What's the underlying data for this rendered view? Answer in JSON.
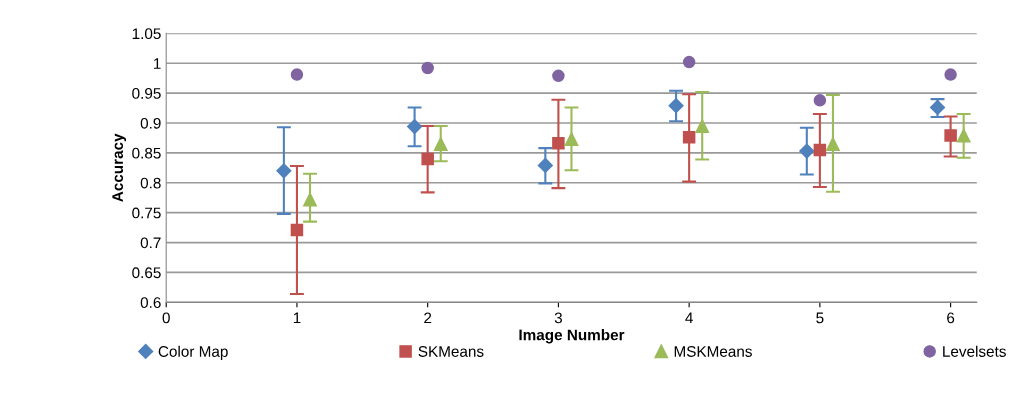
{
  "chart_data": {
    "type": "scatter",
    "xlabel": "Image Number",
    "ylabel": "Accuracy",
    "xlim": [
      0,
      6.2
    ],
    "xticks": [
      0,
      1,
      2,
      3,
      4,
      5,
      6
    ],
    "ylim": [
      0.6,
      1.05
    ],
    "yticks": [
      0.6,
      0.65,
      0.7,
      0.75,
      0.8,
      0.85,
      0.9,
      0.95,
      1,
      1.05
    ],
    "grid": "y",
    "legend": "bottom",
    "series": [
      {
        "name": "Color Map",
        "color": "#4f81bd",
        "marker": "diamond",
        "x": [
          0.9,
          1.9,
          2.9,
          3.9,
          4.9,
          5.9
        ],
        "values": [
          0.82,
          0.894,
          0.829,
          0.929,
          0.853,
          0.926
        ],
        "errors": [
          [
            0.748,
            0.893
          ],
          [
            0.861,
            0.926
          ],
          [
            0.799,
            0.858
          ],
          [
            0.903,
            0.954
          ],
          [
            0.814,
            0.892
          ],
          [
            0.91,
            0.94
          ]
        ]
      },
      {
        "name": "SKMeans",
        "color": "#c0504d",
        "marker": "square",
        "x": [
          1,
          2,
          3,
          4,
          5,
          6
        ],
        "values": [
          0.721,
          0.84,
          0.866,
          0.876,
          0.855,
          0.879
        ],
        "errors": [
          [
            0.614,
            0.828
          ],
          [
            0.784,
            0.895
          ],
          [
            0.791,
            0.939
          ],
          [
            0.802,
            0.948
          ],
          [
            0.793,
            0.915
          ],
          [
            0.844,
            0.911
          ]
        ]
      },
      {
        "name": "MSKMeans",
        "color": "#9bbb59",
        "marker": "triangle",
        "x": [
          1.1,
          2.1,
          3.1,
          4.1,
          5.1,
          6.1
        ],
        "values": [
          0.772,
          0.865,
          0.873,
          0.895,
          0.865,
          0.879
        ],
        "errors": [
          [
            0.735,
            0.815
          ],
          [
            0.836,
            0.895
          ],
          [
            0.821,
            0.926
          ],
          [
            0.839,
            0.952
          ],
          [
            0.785,
            0.947
          ],
          [
            0.842,
            0.915
          ]
        ]
      },
      {
        "name": "Levelsets",
        "color": "#8064a2",
        "marker": "circle",
        "x": [
          1,
          2,
          3,
          4,
          5,
          6
        ],
        "values": [
          0.981,
          0.992,
          0.979,
          1.002,
          0.938,
          0.981
        ]
      }
    ]
  }
}
